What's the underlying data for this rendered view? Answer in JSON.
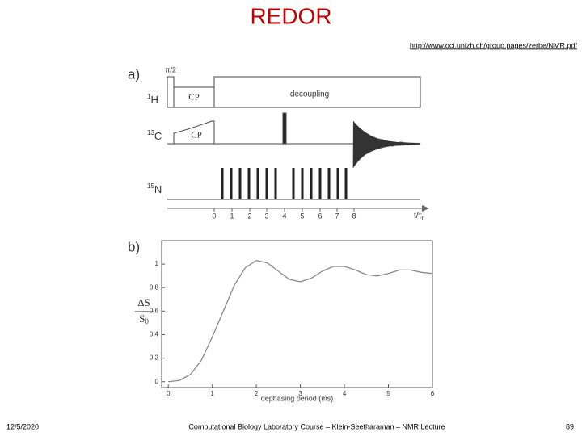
{
  "title": "REDOR",
  "url": "http://www.oci.unizh.ch/group.pages/zerbe/NMR.pdf",
  "panel_a": {
    "label": "a)",
    "pulse_label": "π/2",
    "channels": [
      {
        "mass": "1",
        "element": "H",
        "blocks": [
          "CP",
          "decoupling"
        ]
      },
      {
        "mass": "13",
        "element": "C",
        "blocks": [
          "CP"
        ]
      },
      {
        "mass": "15",
        "element": "N",
        "blocks": []
      }
    ],
    "time_ticks": [
      "0",
      "1",
      "2",
      "3",
      "4",
      "5",
      "6",
      "7",
      "8"
    ],
    "time_axis_label": {
      "base": "t/τ",
      "sub": "r"
    }
  },
  "chart_data": {
    "type": "line",
    "panel_label": "b)",
    "x_label": "dephasing period (ms)",
    "y_label": {
      "numerator": "ΔS",
      "denominator": "S",
      "denominator_sub": "0"
    },
    "x": [
      0,
      0.25,
      0.5,
      0.75,
      1,
      1.25,
      1.5,
      1.75,
      2,
      2.25,
      2.5,
      2.75,
      3,
      3.25,
      3.5,
      3.75,
      4,
      4.25,
      4.5,
      4.75,
      5,
      5.25,
      5.5,
      5.75,
      6
    ],
    "values": [
      0,
      0.01,
      0.06,
      0.18,
      0.38,
      0.6,
      0.82,
      0.97,
      1.03,
      1.01,
      0.94,
      0.87,
      0.85,
      0.88,
      0.94,
      0.98,
      0.98,
      0.95,
      0.91,
      0.9,
      0.92,
      0.95,
      0.95,
      0.93,
      0.92
    ],
    "color": "#888888",
    "xlim": [
      -0.15,
      6
    ],
    "ylim": [
      -0.05,
      1.2
    ],
    "xticks": [
      0,
      1,
      2,
      3,
      4,
      5,
      6
    ],
    "yticks": [
      0,
      0.2,
      0.4,
      0.6,
      0.8,
      1
    ]
  },
  "footer": {
    "date": "12/5/2020",
    "course": "Computational Biology Laboratory Course – Klein-Seetharaman – NMR Lecture",
    "page": "89"
  }
}
